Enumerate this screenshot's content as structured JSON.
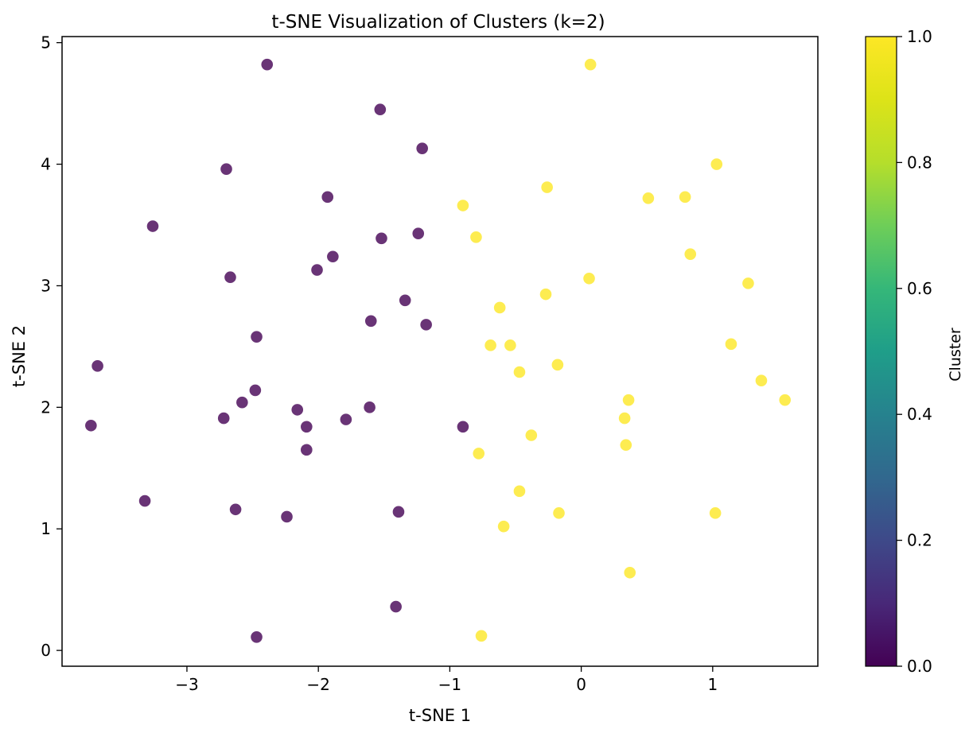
{
  "chart_data": {
    "type": "scatter",
    "title": "t-SNE Visualization of Clusters (k=2)",
    "xlabel": "t-SNE 1",
    "ylabel": "t-SNE 2",
    "xlim": [
      -3.95,
      1.8
    ],
    "ylim": [
      -0.13,
      5.05
    ],
    "x_ticks": [
      -3,
      -2,
      -1,
      0,
      1
    ],
    "x_tick_labels": [
      "−3",
      "−2",
      "−1",
      "0",
      "1"
    ],
    "y_ticks": [
      0,
      1,
      2,
      3,
      4,
      5
    ],
    "y_tick_labels": [
      "0",
      "1",
      "2",
      "3",
      "4",
      "5"
    ],
    "grid": false,
    "colors": {
      "cluster_0": "#440154",
      "cluster_1": "#fde725"
    },
    "point_opacity": 0.8,
    "colorbar": {
      "label": "Cluster",
      "range": [
        0.0,
        1.0
      ],
      "ticks": [
        0.0,
        0.2,
        0.4,
        0.6,
        0.8,
        1.0
      ],
      "tick_labels": [
        "0.0",
        "0.2",
        "0.4",
        "0.6",
        "0.8",
        "1.0"
      ],
      "colormap": "viridis"
    },
    "series": [
      {
        "cluster": 0,
        "points": [
          [
            -2.39,
            4.82
          ],
          [
            -1.53,
            4.45
          ],
          [
            -1.21,
            4.13
          ],
          [
            -2.7,
            3.96
          ],
          [
            -1.93,
            3.73
          ],
          [
            -3.26,
            3.49
          ],
          [
            -1.24,
            3.43
          ],
          [
            -1.52,
            3.39
          ],
          [
            -1.89,
            3.24
          ],
          [
            -2.01,
            3.13
          ],
          [
            -2.67,
            3.07
          ],
          [
            -1.34,
            2.88
          ],
          [
            -1.6,
            2.71
          ],
          [
            -1.18,
            2.68
          ],
          [
            -2.47,
            2.58
          ],
          [
            -3.68,
            2.34
          ],
          [
            -2.48,
            2.14
          ],
          [
            -2.58,
            2.04
          ],
          [
            -2.72,
            1.91
          ],
          [
            -2.16,
            1.98
          ],
          [
            -1.79,
            1.9
          ],
          [
            -1.61,
            2.0
          ],
          [
            -2.09,
            1.84
          ],
          [
            -0.9,
            1.84
          ],
          [
            -3.73,
            1.85
          ],
          [
            -2.09,
            1.65
          ],
          [
            -3.32,
            1.23
          ],
          [
            -2.63,
            1.16
          ],
          [
            -2.24,
            1.1
          ],
          [
            -1.39,
            1.14
          ],
          [
            -1.41,
            0.36
          ],
          [
            -2.47,
            0.11
          ]
        ]
      },
      {
        "cluster": 1,
        "points": [
          [
            0.07,
            4.82
          ],
          [
            1.03,
            4.0
          ],
          [
            -0.26,
            3.81
          ],
          [
            0.51,
            3.72
          ],
          [
            0.79,
            3.73
          ],
          [
            -0.9,
            3.66
          ],
          [
            -0.8,
            3.4
          ],
          [
            0.83,
            3.26
          ],
          [
            0.06,
            3.06
          ],
          [
            1.27,
            3.02
          ],
          [
            -0.27,
            2.93
          ],
          [
            -0.62,
            2.82
          ],
          [
            -0.69,
            2.51
          ],
          [
            -0.54,
            2.51
          ],
          [
            1.14,
            2.52
          ],
          [
            -0.47,
            2.29
          ],
          [
            -0.18,
            2.35
          ],
          [
            1.37,
            2.22
          ],
          [
            1.55,
            2.06
          ],
          [
            0.36,
            2.06
          ],
          [
            0.33,
            1.91
          ],
          [
            -0.38,
            1.77
          ],
          [
            0.34,
            1.69
          ],
          [
            -0.78,
            1.62
          ],
          [
            -0.47,
            1.31
          ],
          [
            -0.59,
            1.02
          ],
          [
            -0.17,
            1.13
          ],
          [
            1.02,
            1.13
          ],
          [
            0.37,
            0.64
          ],
          [
            -0.76,
            0.12
          ]
        ]
      }
    ]
  }
}
